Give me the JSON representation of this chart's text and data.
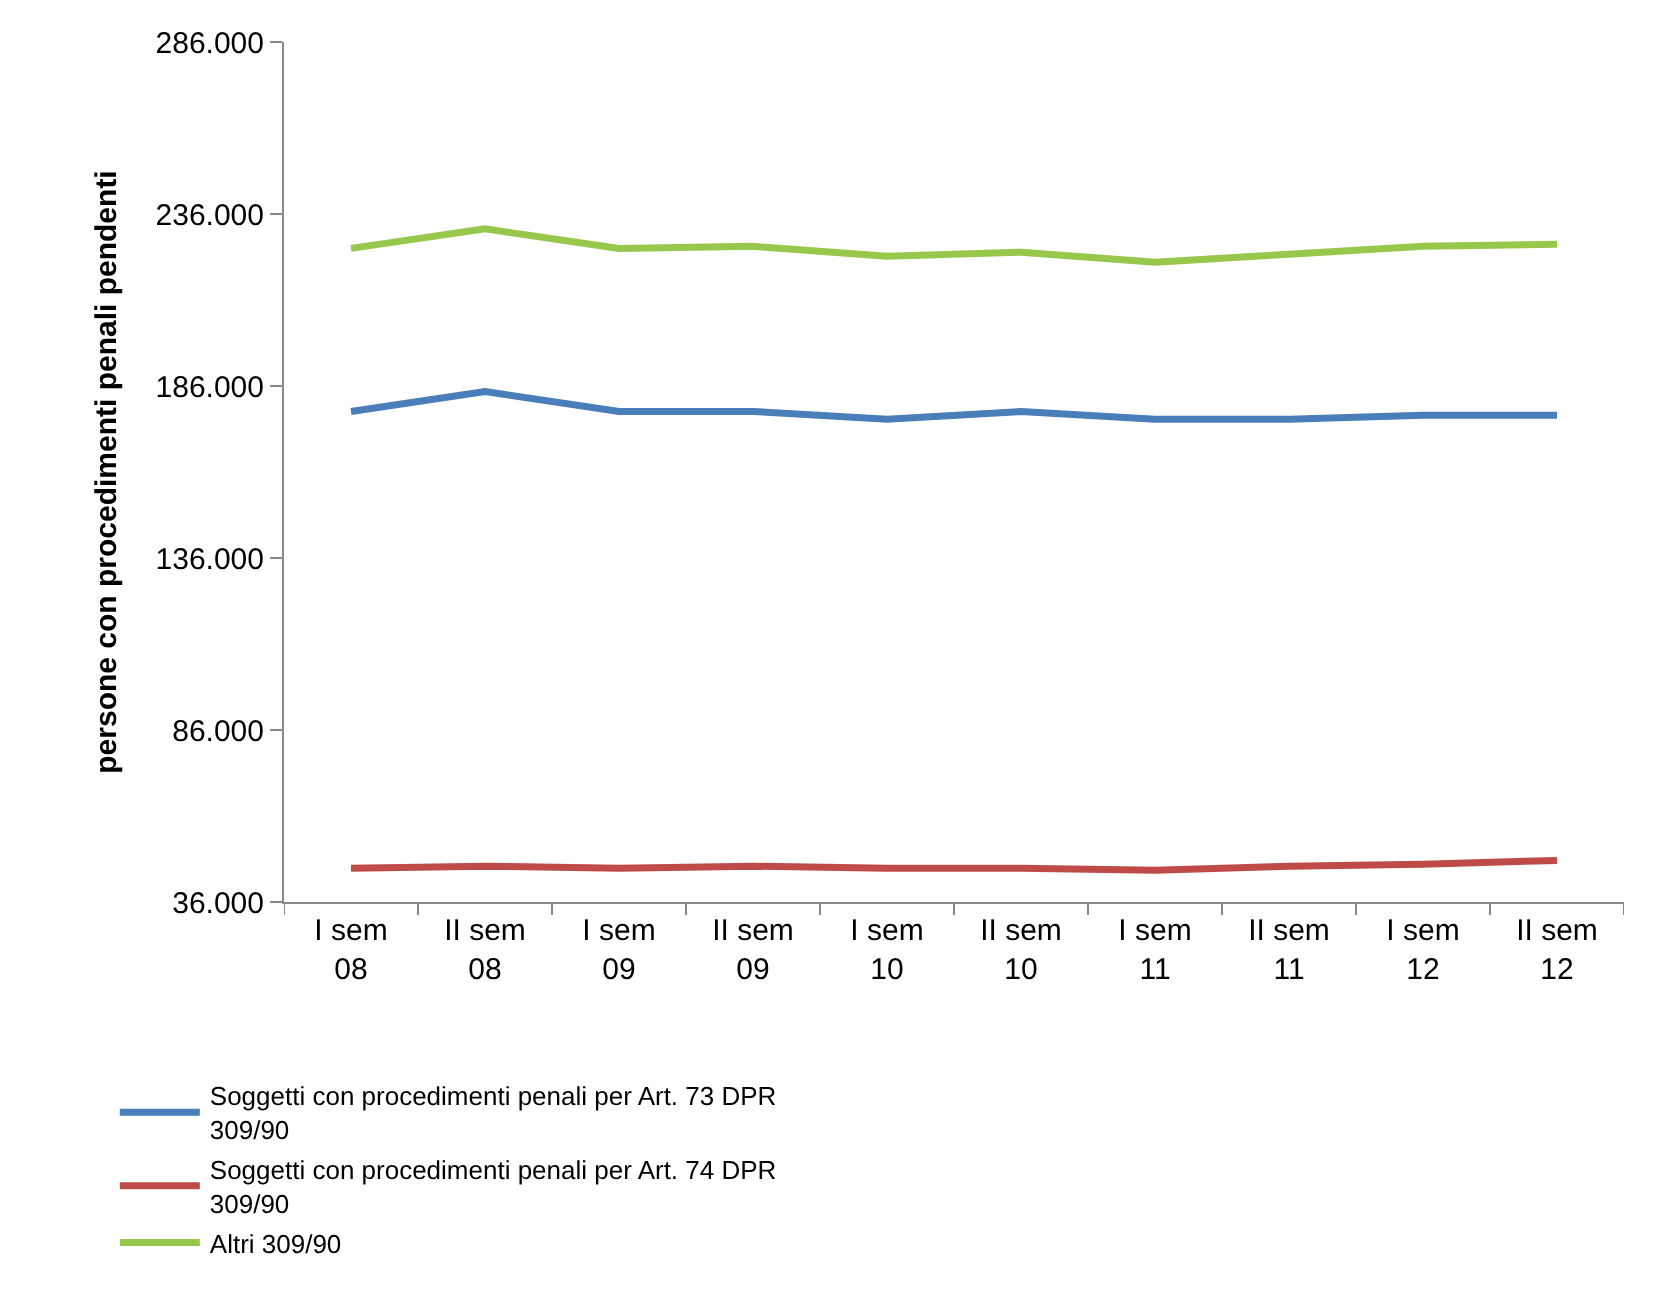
{
  "chart_data": {
    "type": "line",
    "ylabel": "persone con procedimenti penali pendenti",
    "categories": [
      "I sem 08",
      "II sem 08",
      "I sem 09",
      "II sem 09",
      "I sem 10",
      "II sem 10",
      "I sem 11",
      "II sem 11",
      "I sem 12",
      "II sem 12"
    ],
    "series": [
      {
        "name": "Soggetti con procedimenti penali per Art. 73 DPR 309/90",
        "color": "#4a7ebb",
        "values": [
          178600,
          184400,
          178600,
          178600,
          176300,
          178600,
          176300,
          176300,
          177500,
          177500
        ]
      },
      {
        "name": "Soggetti con procedimenti penali per Art. 74 DPR 309/90",
        "color": "#be4b48",
        "values": [
          45800,
          46400,
          45800,
          46400,
          45800,
          45800,
          45200,
          46400,
          47000,
          48100
        ]
      },
      {
        "name": "Altri 309/90",
        "color": "#98c84b",
        "values": [
          226000,
          231700,
          226000,
          226600,
          223700,
          224900,
          222000,
          224300,
          226600,
          227200
        ]
      }
    ],
    "ylim": [
      36000,
      286000
    ],
    "yticks": [
      {
        "value": 36000,
        "label": "36.000"
      },
      {
        "value": 86000,
        "label": "86.000"
      },
      {
        "value": 136000,
        "label": "136.000"
      },
      {
        "value": 186000,
        "label": "186.000"
      },
      {
        "value": 236000,
        "label": "236.000"
      },
      {
        "value": 286000,
        "label": "286.000"
      }
    ],
    "legend": "bottom",
    "marker": "none",
    "line_style": "solid"
  }
}
